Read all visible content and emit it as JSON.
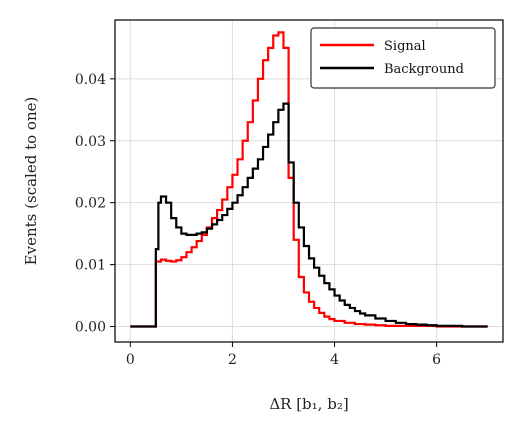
{
  "chart_data": {
    "type": "line",
    "drawstyle": "steps",
    "xlabel": "ΔR [b₁, b₂]",
    "ylabel": "Events (scaled to one)",
    "xlim": [
      -0.3,
      7.3
    ],
    "ylim": [
      -0.0025,
      0.0495
    ],
    "xticks": [
      0,
      2,
      4,
      6
    ],
    "xtick_labels": [
      "0",
      "2",
      "4",
      "6"
    ],
    "yticks": [
      0.0,
      0.01,
      0.02,
      0.03,
      0.04
    ],
    "ytick_labels": [
      "0.00",
      "0.01",
      "0.02",
      "0.03",
      "0.04"
    ],
    "grid": true,
    "legend_position": "top-right",
    "series": [
      {
        "name": "Signal",
        "color": "#ff0000",
        "x": [
          0.0,
          0.5,
          0.6,
          0.7,
          0.8,
          0.9,
          1.0,
          1.1,
          1.2,
          1.3,
          1.4,
          1.5,
          1.6,
          1.7,
          1.8,
          1.9,
          2.0,
          2.1,
          2.2,
          2.3,
          2.4,
          2.5,
          2.6,
          2.7,
          2.8,
          2.9,
          3.0,
          3.1,
          3.2,
          3.3,
          3.4,
          3.5,
          3.6,
          3.7,
          3.8,
          3.9,
          4.0,
          4.2,
          4.4,
          4.6,
          4.8,
          5.0,
          5.5,
          6.0,
          7.0
        ],
        "y": [
          0.0,
          0.0105,
          0.0108,
          0.0106,
          0.0105,
          0.0107,
          0.0112,
          0.012,
          0.0128,
          0.0138,
          0.0148,
          0.016,
          0.0175,
          0.0188,
          0.0205,
          0.0225,
          0.0245,
          0.027,
          0.03,
          0.033,
          0.0365,
          0.04,
          0.043,
          0.045,
          0.047,
          0.0475,
          0.045,
          0.024,
          0.014,
          0.008,
          0.0055,
          0.004,
          0.003,
          0.0022,
          0.0016,
          0.0012,
          0.0009,
          0.0006,
          0.0004,
          0.0003,
          0.0002,
          0.0001,
          0.0001,
          0.0,
          0.0
        ]
      },
      {
        "name": "Background",
        "color": "#000000",
        "x": [
          0.0,
          0.5,
          0.55,
          0.6,
          0.7,
          0.8,
          0.9,
          1.0,
          1.1,
          1.2,
          1.3,
          1.4,
          1.5,
          1.6,
          1.7,
          1.8,
          1.9,
          2.0,
          2.1,
          2.2,
          2.3,
          2.4,
          2.5,
          2.6,
          2.7,
          2.8,
          2.9,
          3.0,
          3.1,
          3.2,
          3.3,
          3.4,
          3.5,
          3.6,
          3.7,
          3.8,
          3.9,
          4.0,
          4.1,
          4.2,
          4.3,
          4.4,
          4.5,
          4.6,
          4.8,
          5.0,
          5.2,
          5.4,
          5.6,
          5.8,
          6.0,
          6.5,
          7.0
        ],
        "y": [
          0.0,
          0.0125,
          0.02,
          0.021,
          0.02,
          0.0175,
          0.016,
          0.015,
          0.0148,
          0.0148,
          0.015,
          0.0152,
          0.0158,
          0.0165,
          0.0172,
          0.018,
          0.019,
          0.02,
          0.0212,
          0.0225,
          0.024,
          0.0255,
          0.027,
          0.029,
          0.031,
          0.033,
          0.035,
          0.036,
          0.0265,
          0.02,
          0.016,
          0.013,
          0.011,
          0.0095,
          0.0082,
          0.007,
          0.006,
          0.005,
          0.0042,
          0.0035,
          0.003,
          0.0025,
          0.0021,
          0.0018,
          0.0013,
          0.0009,
          0.0006,
          0.0004,
          0.0003,
          0.0002,
          0.0001,
          0.0,
          0.0
        ]
      }
    ]
  }
}
